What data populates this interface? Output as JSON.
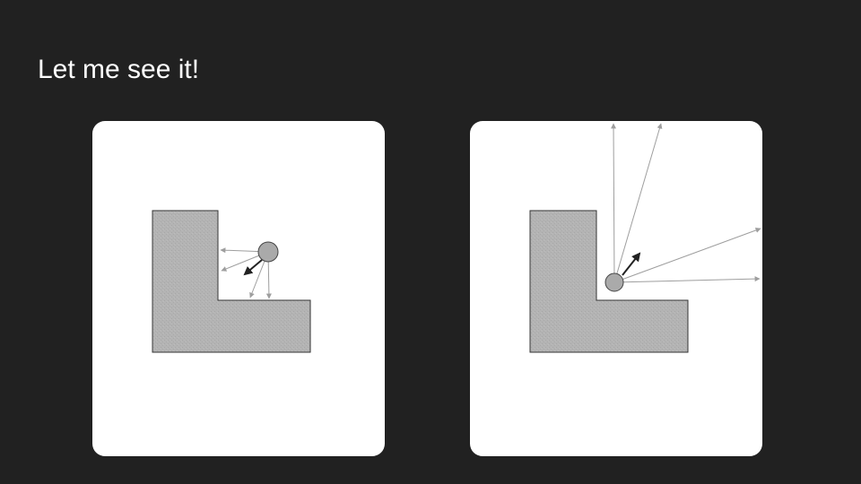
{
  "slide": {
    "title": "Let me see it!"
  },
  "colors": {
    "background": "#212121",
    "panel": "#ffffff",
    "shape_fill": "#b2b2b2",
    "shape_stroke": "#333333",
    "circle_fill": "#aaaaaa",
    "ray_color": "#9e9e9e",
    "arrow_color": "#222222"
  },
  "diagrams": [
    {
      "name": "ball-inside-corner",
      "ray_count": 4,
      "normal_direction": "down-left"
    },
    {
      "name": "ball-outside-corner",
      "ray_count": 4,
      "normal_direction": "up-right"
    }
  ]
}
